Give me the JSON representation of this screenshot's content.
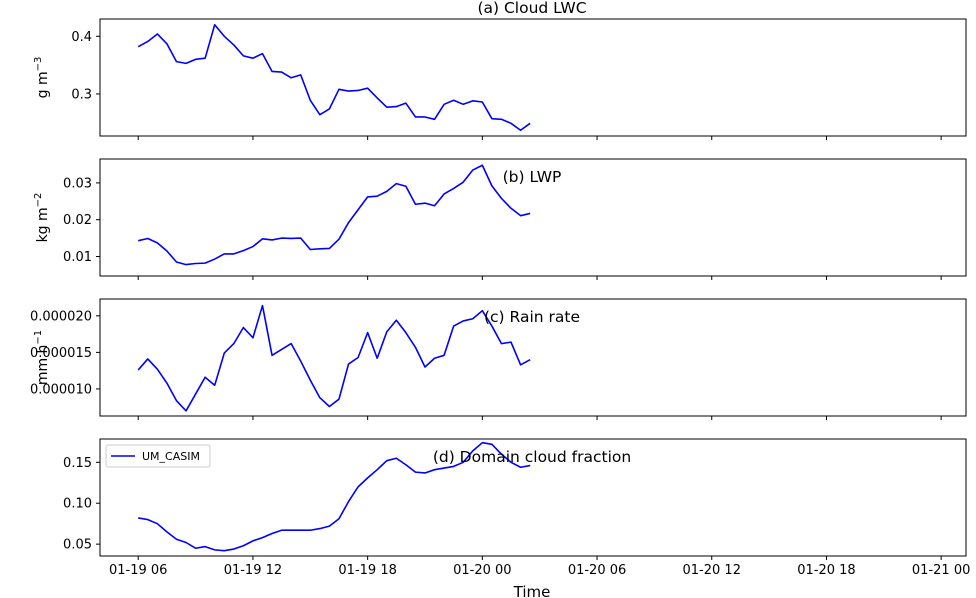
{
  "chart_data": [
    {
      "type": "line",
      "title": "(a) Cloud LWC",
      "ylabel": "g m$^{-3}$",
      "ylabel_parts": {
        "base": "g m",
        "exp": "−3"
      },
      "ylim": [
        0.227,
        0.43
      ],
      "yticks": [
        0.3,
        0.4
      ],
      "ytick_labels": [
        "0.3",
        "0.4"
      ],
      "series": [
        {
          "color": "#0000ff",
          "values": [
            0.382,
            0.391,
            0.404,
            0.387,
            0.356,
            0.353,
            0.36,
            0.362,
            0.42,
            0.4,
            0.385,
            0.366,
            0.362,
            0.37,
            0.339,
            0.338,
            0.328,
            0.333,
            0.289,
            0.264,
            0.274,
            0.308,
            0.305,
            0.306,
            0.31,
            0.293,
            0.277,
            0.278,
            0.284,
            0.26,
            0.26,
            0.256,
            0.282,
            0.289,
            0.282,
            0.288,
            0.286,
            0.257,
            0.256,
            0.249,
            0.237,
            0.249
          ]
        }
      ]
    },
    {
      "type": "line",
      "title": "(b) LWP",
      "ylabel_parts": {
        "base": "kg m",
        "exp": "−2"
      },
      "ylim": [
        0.0047,
        0.0365
      ],
      "yticks": [
        0.01,
        0.02,
        0.03
      ],
      "ytick_labels": [
        "0.01",
        "0.02",
        "0.03"
      ],
      "series": [
        {
          "color": "#0000ff",
          "values": [
            0.0143,
            0.0149,
            0.0137,
            0.0115,
            0.0085,
            0.0078,
            0.0081,
            0.0082,
            0.0093,
            0.0107,
            0.0107,
            0.0116,
            0.0127,
            0.0148,
            0.0145,
            0.015,
            0.0149,
            0.015,
            0.0119,
            0.0121,
            0.0122,
            0.0147,
            0.0192,
            0.0227,
            0.0262,
            0.0264,
            0.0277,
            0.0298,
            0.0291,
            0.0242,
            0.0245,
            0.0238,
            0.027,
            0.0285,
            0.0302,
            0.0335,
            0.0348,
            0.0292,
            0.0258,
            0.0231,
            0.0211,
            0.0217
          ]
        }
      ]
    },
    {
      "type": "line",
      "title": "(c) Rain rate",
      "ylabel_parts": {
        "base": "mm h",
        "exp": "−1"
      },
      "ylim": [
        6.3e-06,
        2.23e-05
      ],
      "yticks": [
        1e-05,
        1.5e-05,
        2e-05
      ],
      "ytick_labels": [
        "0.000010",
        "0.000015",
        "0.000020"
      ],
      "series": [
        {
          "color": "#0000ff",
          "values": [
            1.26e-05,
            1.41e-05,
            1.27e-05,
            1.08e-05,
            8.4e-06,
            7e-06,
            9.3e-06,
            1.16e-05,
            1.05e-05,
            1.49e-05,
            1.62e-05,
            1.84e-05,
            1.7e-05,
            2.14e-05,
            1.46e-05,
            1.54e-05,
            1.62e-05,
            1.38e-05,
            1.12e-05,
            8.8e-06,
            7.6e-06,
            8.6e-06,
            1.34e-05,
            1.43e-05,
            1.77e-05,
            1.42e-05,
            1.78e-05,
            1.94e-05,
            1.77e-05,
            1.57e-05,
            1.3e-05,
            1.42e-05,
            1.46e-05,
            1.86e-05,
            1.93e-05,
            1.96e-05,
            2.07e-05,
            1.86e-05,
            1.62e-05,
            1.64e-05,
            1.33e-05,
            1.4e-05
          ]
        }
      ]
    },
    {
      "type": "line",
      "title": "(d) Domain cloud fraction",
      "xlabel": "Time",
      "ylim": [
        0.0355,
        0.1785
      ],
      "yticks": [
        0.05,
        0.1,
        0.15
      ],
      "ytick_labels": [
        "0.05",
        "0.10",
        "0.15"
      ],
      "legend": {
        "position": "upper-left",
        "entries": [
          "UM_CASIM"
        ]
      },
      "series": [
        {
          "name": "UM_CASIM",
          "color": "#0000ff",
          "values": [
            0.082,
            0.08,
            0.075,
            0.065,
            0.056,
            0.052,
            0.045,
            0.047,
            0.043,
            0.042,
            0.044,
            0.048,
            0.054,
            0.058,
            0.063,
            0.067,
            0.067,
            0.067,
            0.067,
            0.069,
            0.072,
            0.081,
            0.102,
            0.12,
            0.131,
            0.141,
            0.152,
            0.155,
            0.147,
            0.138,
            0.137,
            0.141,
            0.143,
            0.145,
            0.15,
            0.164,
            0.174,
            0.172,
            0.16,
            0.15,
            0.144,
            0.146
          ]
        }
      ]
    }
  ],
  "x": {
    "start_label": "01-19 06",
    "step_hours": 0.5,
    "count": 42,
    "ticks": [
      "01-19 06",
      "01-19 12",
      "01-19 18",
      "01-20 00",
      "01-20 06",
      "01-20 12",
      "01-20 18",
      "01-21 00"
    ],
    "tick_offsets_hours": [
      0,
      6,
      12,
      18,
      24,
      30,
      36,
      42
    ],
    "xlim_hours": [
      -2.0,
      43.3
    ]
  }
}
